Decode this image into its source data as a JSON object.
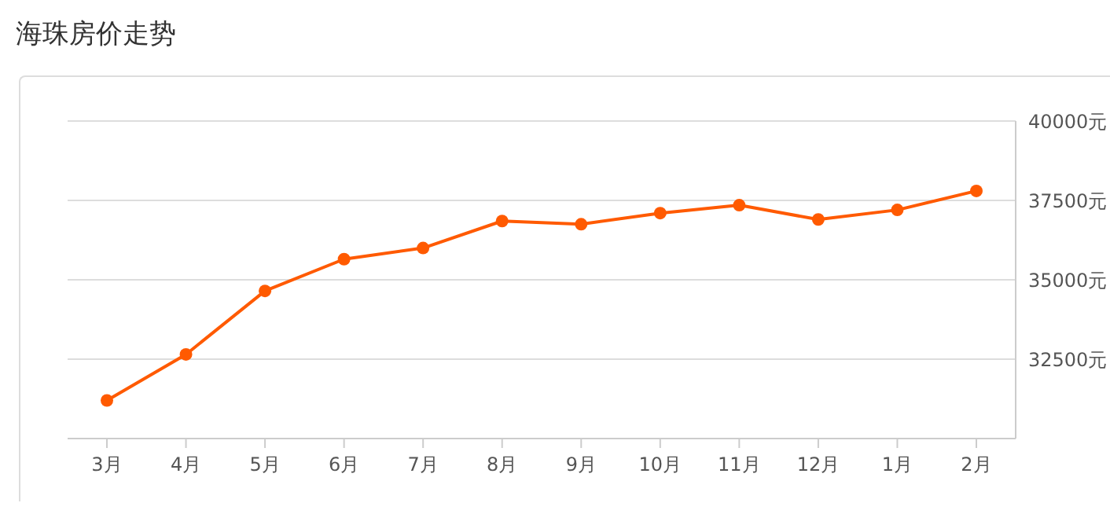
{
  "chart_data": {
    "type": "line",
    "title": "海珠房价走势",
    "categories": [
      "3月",
      "4月",
      "5月",
      "6月",
      "7月",
      "8月",
      "9月",
      "10月",
      "11月",
      "12月",
      "1月",
      "2月"
    ],
    "series": [
      {
        "color": "#ff5a00",
        "values": [
          31200,
          32650,
          34650,
          35650,
          36000,
          36850,
          36750,
          37100,
          37350,
          36900,
          37200,
          37800
        ]
      }
    ],
    "ylim": [
      30000,
      40000
    ],
    "yticks": [
      {
        "value": 32500,
        "label": "32500元"
      },
      {
        "value": 35000,
        "label": "35000元"
      },
      {
        "value": 37500,
        "label": "37500元"
      },
      {
        "value": 40000,
        "label": "40000元"
      }
    ],
    "grid": "y",
    "legend": false,
    "marker": "circle",
    "line_style": "solid"
  }
}
